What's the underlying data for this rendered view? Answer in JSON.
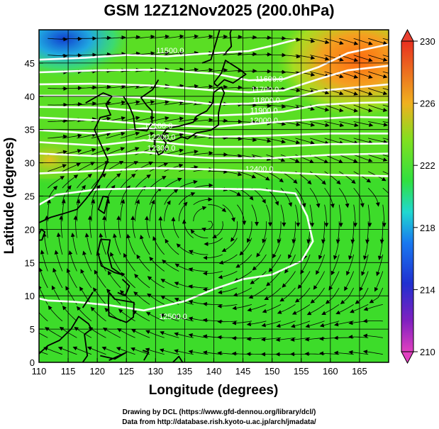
{
  "chart_data": {
    "type": "heatmap",
    "title": "GSM 12Z12Nov2025 (200.0hPa)",
    "xlabel": "Longitude (degrees)",
    "ylabel": "Latitude  (degrees)",
    "xlim": [
      110,
      170
    ],
    "ylim": [
      0,
      50
    ],
    "x_ticks": [
      110,
      115,
      120,
      125,
      130,
      135,
      140,
      145,
      150,
      155,
      160,
      165
    ],
    "y_ticks": [
      0,
      5,
      10,
      15,
      20,
      25,
      30,
      35,
      40,
      45
    ],
    "colorbar": {
      "range": [
        210,
        230
      ],
      "ticks": [
        210,
        214,
        218,
        222,
        226,
        230
      ],
      "colors": [
        "#e040c0",
        "#4020c0",
        "#1878f0",
        "#20d8d0",
        "#40e020",
        "#80e020",
        "#c8e020",
        "#f0a020",
        "#e84020"
      ]
    },
    "contour_labels": [
      {
        "text": "11500.0",
        "lon": 132.5,
        "lat": 46.5
      },
      {
        "text": "11600.0",
        "lon": 149.5,
        "lat": 42.2
      },
      {
        "text": "11700.0",
        "lon": 148.8,
        "lat": 40.6
      },
      {
        "text": "11800.0",
        "lon": 149.0,
        "lat": 39.0
      },
      {
        "text": "11900.0",
        "lon": 148.6,
        "lat": 37.5
      },
      {
        "text": "12000.0",
        "lon": 148.6,
        "lat": 36.0
      },
      {
        "text": "12100.0",
        "lon": 130.5,
        "lat": 35.2
      },
      {
        "text": "12200.0",
        "lon": 131.0,
        "lat": 33.5
      },
      {
        "text": "12300.0",
        "lon": 131.0,
        "lat": 31.8
      },
      {
        "text": "12400.0",
        "lon": 147.8,
        "lat": 28.7
      },
      {
        "text": "12500.0",
        "lon": 133.0,
        "lat": 6.5
      }
    ]
  },
  "credits": {
    "line1": "Drawing by DCL (https://www.gfd-dennou.org/library/dcl/)",
    "line2": "Data from http://database.rish.kyoto-u.ac.jp/arch/jmadata/"
  }
}
